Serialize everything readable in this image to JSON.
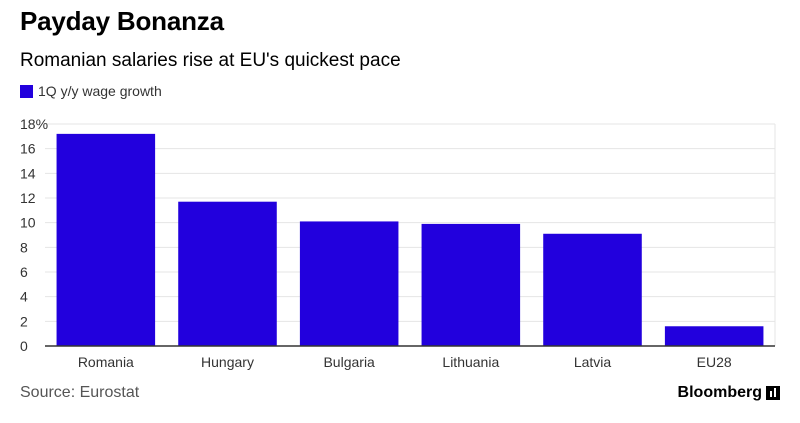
{
  "header": {
    "title": "Payday Bonanza",
    "subtitle": "Romanian salaries rise at EU's quickest pace"
  },
  "footer": {
    "source": "Source: Eurostat",
    "brand": "Bloomberg"
  },
  "colors": {
    "bar": "#2200DD",
    "grid": "#E5E5E5",
    "axis": "#333333"
  },
  "chart_data": {
    "type": "bar",
    "title": "Payday Bonanza",
    "subtitle": "Romanian salaries rise at EU's quickest pace",
    "categories": [
      "Romania",
      "Hungary",
      "Bulgaria",
      "Lithuania",
      "Latvia",
      "EU28"
    ],
    "series": [
      {
        "name": "1Q y/y wage growth",
        "values": [
          17.2,
          11.7,
          10.1,
          9.9,
          9.1,
          1.6
        ]
      }
    ],
    "ylim": [
      0,
      18
    ],
    "yticks": [
      0,
      2,
      4,
      6,
      8,
      10,
      12,
      14,
      16,
      18
    ],
    "ytick_labels": [
      "0",
      "2",
      "4",
      "6",
      "8",
      "10",
      "12",
      "14",
      "16",
      "18%"
    ],
    "xlabel": "",
    "ylabel": "",
    "grid": true,
    "legend": "top-left"
  }
}
